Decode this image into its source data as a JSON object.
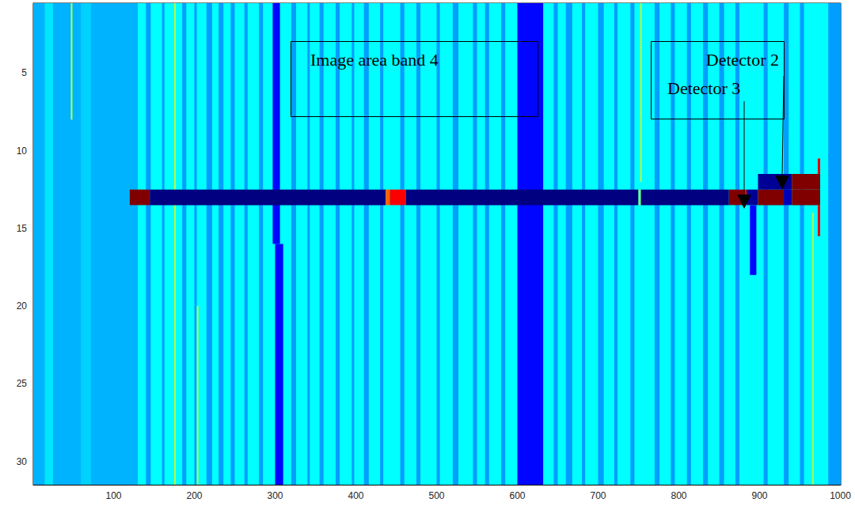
{
  "chart_data": {
    "type": "heatmap",
    "annotations": [
      "Image area band 4",
      "Detector 2",
      "Detector 3"
    ],
    "xlim": [
      0.5,
      1000.5
    ],
    "ylim": [
      0.5,
      31.5
    ],
    "xticks": [
      100,
      200,
      300,
      400,
      500,
      600,
      700,
      800,
      900,
      1000
    ],
    "yticks": [
      5,
      10,
      15,
      20,
      25,
      30
    ],
    "color_range": [
      0,
      1
    ],
    "cells": [
      [
        0.5,
        1000.5,
        0.5,
        31.5,
        0.375
      ],
      [
        0.5,
        15,
        0.5,
        31.5,
        0.3
      ],
      [
        15,
        25,
        0.5,
        31.5,
        0.35
      ],
      [
        25,
        60,
        0.5,
        31.5,
        0.3
      ],
      [
        60,
        72,
        0.5,
        31.5,
        0.33
      ],
      [
        72,
        130,
        0.5,
        31.5,
        0.3
      ],
      [
        140,
        146,
        0.5,
        31.5,
        0.28
      ],
      [
        160,
        163,
        0.5,
        31.5,
        0.28
      ],
      [
        185,
        190,
        0.5,
        31.5,
        0.28
      ],
      [
        200,
        203,
        0.5,
        31.5,
        0.28
      ],
      [
        215,
        222,
        0.5,
        31.5,
        0.28
      ],
      [
        230,
        236,
        0.5,
        31.5,
        0.28
      ],
      [
        245,
        250,
        0.5,
        31.5,
        0.28
      ],
      [
        262,
        266,
        0.5,
        31.5,
        0.28
      ],
      [
        280,
        285,
        0.5,
        31.5,
        0.28
      ],
      [
        320,
        326,
        0.5,
        31.5,
        0.28
      ],
      [
        340,
        343,
        0.5,
        31.5,
        0.28
      ],
      [
        355,
        360,
        0.5,
        31.5,
        0.28
      ],
      [
        375,
        380,
        0.5,
        31.5,
        0.28
      ],
      [
        395,
        398,
        0.5,
        31.5,
        0.28
      ],
      [
        410,
        416,
        0.5,
        31.5,
        0.28
      ],
      [
        430,
        434,
        0.5,
        31.5,
        0.28
      ],
      [
        455,
        460,
        0.5,
        31.5,
        0.28
      ],
      [
        475,
        480,
        0.5,
        31.5,
        0.28
      ],
      [
        500,
        504,
        0.5,
        31.5,
        0.28
      ],
      [
        520,
        527,
        0.5,
        31.5,
        0.28
      ],
      [
        545,
        550,
        0.5,
        31.5,
        0.28
      ],
      [
        560,
        565,
        0.5,
        31.5,
        0.28
      ],
      [
        580,
        585,
        0.5,
        31.5,
        0.28
      ],
      [
        645,
        650,
        0.5,
        31.5,
        0.28
      ],
      [
        660,
        668,
        0.5,
        31.5,
        0.28
      ],
      [
        680,
        684,
        0.5,
        31.5,
        0.28
      ],
      [
        700,
        707,
        0.5,
        31.5,
        0.28
      ],
      [
        720,
        724,
        0.5,
        31.5,
        0.28
      ],
      [
        740,
        745,
        0.5,
        31.5,
        0.28
      ],
      [
        770,
        776,
        0.5,
        31.5,
        0.28
      ],
      [
        790,
        795,
        0.5,
        31.5,
        0.28
      ],
      [
        810,
        815,
        0.5,
        31.5,
        0.28
      ],
      [
        830,
        836,
        0.5,
        31.5,
        0.28
      ],
      [
        850,
        856,
        0.5,
        31.5,
        0.28
      ],
      [
        870,
        875,
        0.5,
        31.5,
        0.28
      ],
      [
        905,
        910,
        0.5,
        31.5,
        0.28
      ],
      [
        930,
        936,
        0.5,
        31.5,
        0.28
      ],
      [
        950,
        955,
        0.5,
        31.5,
        0.28
      ],
      [
        985,
        1000.5,
        0.5,
        31.5,
        0.28
      ],
      [
        297,
        306,
        0.5,
        16,
        0.13
      ],
      [
        300,
        310,
        16,
        31.5,
        0.13
      ],
      [
        600,
        632,
        0.5,
        31.5,
        0.13
      ],
      [
        888,
        896,
        13.5,
        18,
        0.13
      ],
      [
        47,
        49,
        0.5,
        8,
        0.55
      ],
      [
        175,
        177,
        0.5,
        31.5,
        0.55
      ],
      [
        203,
        205,
        20,
        31.5,
        0.55
      ],
      [
        752,
        754,
        0.5,
        12,
        0.55
      ],
      [
        965,
        967,
        14,
        31.5,
        0.55
      ],
      [
        120,
        145,
        12.5,
        13.5,
        1
      ],
      [
        145,
        437,
        12.5,
        13.5,
        0
      ],
      [
        437,
        442,
        12.5,
        13.5,
        0.78
      ],
      [
        442,
        462,
        12.5,
        13.5,
        0.88
      ],
      [
        462,
        750,
        12.5,
        13.5,
        0
      ],
      [
        750,
        753,
        12.5,
        13.5,
        0.5
      ],
      [
        753,
        862,
        12.5,
        13.5,
        0
      ],
      [
        862,
        880,
        12.5,
        13.5,
        1
      ],
      [
        880,
        884,
        12.5,
        13.5,
        0.9
      ],
      [
        884,
        898,
        12.5,
        13.5,
        0.02
      ],
      [
        898,
        930,
        12.5,
        13.5,
        1
      ],
      [
        930,
        940,
        12.5,
        13.5,
        0.05
      ],
      [
        940,
        975,
        12.5,
        13.5,
        1
      ],
      [
        898,
        940,
        11.5,
        12.5,
        0.02
      ],
      [
        940,
        975,
        11.5,
        12.5,
        1
      ],
      [
        972,
        975,
        10.5,
        11.5,
        0.9
      ],
      [
        972,
        975,
        13.5,
        15.5,
        0.9
      ]
    ]
  }
}
